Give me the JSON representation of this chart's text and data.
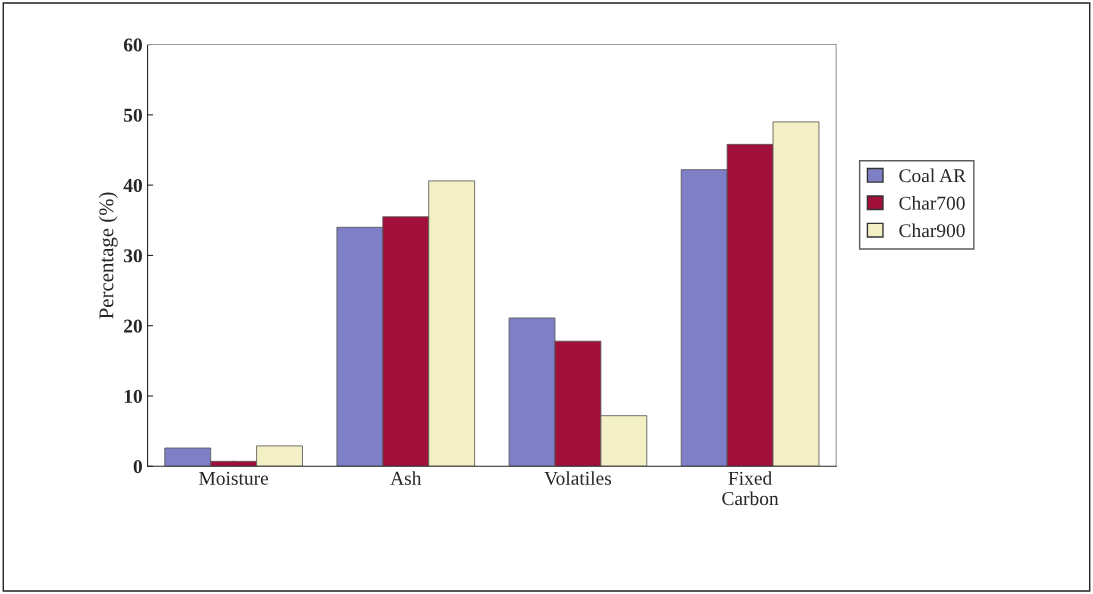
{
  "chart_data": {
    "type": "bar",
    "ylabel": "Percentage (%)",
    "categories": [
      "Moisture",
      "Ash",
      "Volatiles",
      "Fixed\nCarbon"
    ],
    "series": [
      {
        "name": "Coal AR",
        "color": "#7f7fc8",
        "values": [
          2.6,
          34.0,
          21.1,
          42.2
        ]
      },
      {
        "name": "Char700",
        "color": "#a0103a",
        "values": [
          0.7,
          35.5,
          17.8,
          45.8
        ]
      },
      {
        "name": "Char900",
        "color": "#f2f0c4",
        "values": [
          2.9,
          40.6,
          7.2,
          49.0
        ]
      }
    ],
    "ylim": [
      0,
      60
    ],
    "yticks": [
      0,
      10,
      20,
      30,
      40,
      50,
      60
    ],
    "grid": false,
    "legend": "right"
  }
}
